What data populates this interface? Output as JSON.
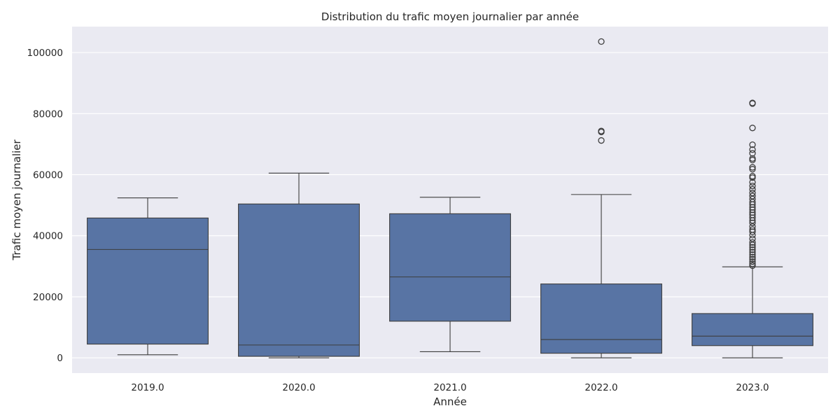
{
  "chart_data": {
    "type": "box",
    "title": "Distribution du trafic moyen journalier par année",
    "xlabel": "Année",
    "ylabel": "Trafic moyen journalier",
    "ylim": [
      -5000,
      108500
    ],
    "yticks": [
      0,
      20000,
      40000,
      60000,
      80000,
      100000
    ],
    "ytick_labels": [
      "0",
      "20000",
      "40000",
      "60000",
      "80000",
      "100000"
    ],
    "grid": true,
    "categories": [
      "2019.0",
      "2020.0",
      "2021.0",
      "2022.0",
      "2023.0"
    ],
    "boxes": [
      {
        "category": "2019.0",
        "whisker_low": 1000,
        "q1": 4500,
        "median": 35500,
        "q3": 45800,
        "whisker_high": 52400,
        "outliers": []
      },
      {
        "category": "2020.0",
        "whisker_low": 0,
        "q1": 500,
        "median": 4200,
        "q3": 50400,
        "whisker_high": 60500,
        "outliers": []
      },
      {
        "category": "2021.0",
        "whisker_low": 2000,
        "q1": 12000,
        "median": 26500,
        "q3": 47200,
        "whisker_high": 52600,
        "outliers": []
      },
      {
        "category": "2022.0",
        "whisker_low": 0,
        "q1": 1500,
        "median": 6000,
        "q3": 24200,
        "whisker_high": 53500,
        "outliers": [
          71200,
          74000,
          74300,
          103600
        ]
      },
      {
        "category": "2023.0",
        "whisker_low": 0,
        "q1": 4000,
        "median": 7100,
        "q3": 14500,
        "whisker_high": 29800,
        "outliers": [
          30200,
          30800,
          31500,
          32300,
          33000,
          33800,
          34600,
          35400,
          36200,
          37000,
          37800,
          39000,
          40200,
          41300,
          42000,
          43000,
          44200,
          45000,
          45900,
          46800,
          47600,
          48500,
          49300,
          50200,
          51000,
          52000,
          53000,
          54000,
          55200,
          56300,
          57500,
          59000,
          59500,
          61800,
          62400,
          64800,
          65300,
          67000,
          68200,
          69800,
          75300,
          83300,
          83500
        ]
      }
    ],
    "colors": {
      "background": "#eaeaf2",
      "grid": "#ffffff",
      "box_fill": "#5874a4",
      "line": "#3d3d3d",
      "text": "#262626"
    }
  }
}
